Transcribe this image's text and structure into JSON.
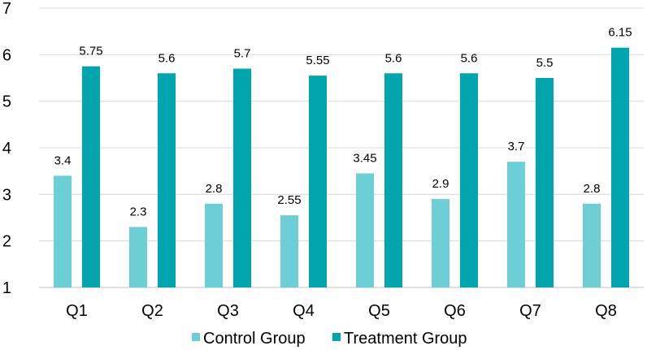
{
  "chart_data": {
    "type": "bar",
    "title": "",
    "xlabel": "",
    "ylabel": "",
    "ylim": [
      1,
      7
    ],
    "yticks": [
      1,
      2,
      3,
      4,
      5,
      6,
      7
    ],
    "ytick_labels": [
      "1",
      "2",
      "3",
      "4",
      "5",
      "6",
      "7"
    ],
    "grid": true,
    "legend_position": "bottom",
    "categories": [
      "Q1",
      "Q2",
      "Q3",
      "Q4",
      "Q5",
      "Q6",
      "Q7",
      "Q8"
    ],
    "series": [
      {
        "name": "Control Group",
        "color": "#6dcfd6",
        "values": [
          3.4,
          2.3,
          2.8,
          2.55,
          3.45,
          2.9,
          3.7,
          2.8
        ],
        "labels": [
          "3.4",
          "2.3",
          "2.8",
          "2.55",
          "3.45",
          "2.9",
          "3.7",
          "2.8"
        ]
      },
      {
        "name": "Treatment Group",
        "color": "#00a5ad",
        "values": [
          5.75,
          5.6,
          5.7,
          5.55,
          5.6,
          5.6,
          5.5,
          6.15
        ],
        "labels": [
          "5.75",
          "5.6",
          "5.7",
          "5.55",
          "5.6",
          "5.6",
          "5.5",
          "6.15"
        ]
      }
    ]
  }
}
